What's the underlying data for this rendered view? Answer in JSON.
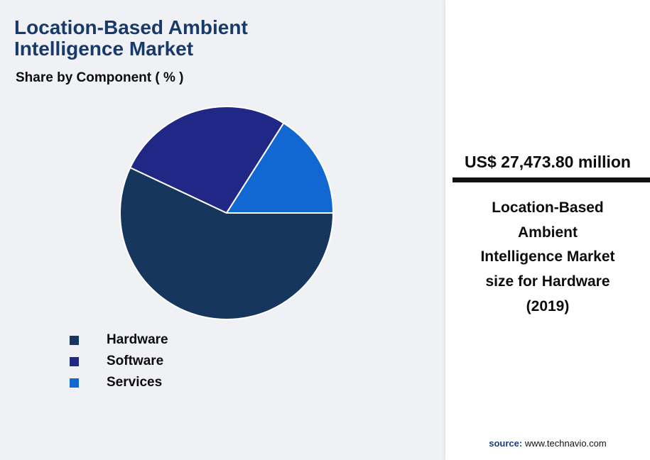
{
  "title": "Location-Based Ambient\nIntelligence Market",
  "subtitle": "Share by Component ( % )",
  "chart_data": {
    "type": "pie",
    "title": "Location-Based Ambient Intelligence Market — Share by Component ( % )",
    "labels": [
      "Hardware",
      "Software",
      "Services"
    ],
    "values": [
      57,
      27,
      16
    ],
    "colors": [
      "#17365d",
      "#202785",
      "#1168d2"
    ],
    "start_angle_deg": 0,
    "direction": "clockwise",
    "legend_position": "bottom-left",
    "data_labels_shown": false
  },
  "panel": {
    "value": "US$ 27,473.80 million",
    "description": "Location-Based\nAmbient\nIntelligence Market\nsize for Hardware\n(2019)",
    "source_label": "source:",
    "source_url": "www.technavio.com"
  },
  "colors": {
    "title_text": "#173a68",
    "background": "#eff1f5",
    "panel_background": "#ffffff",
    "rule": "#111111",
    "source_label": "#1a3c8c"
  }
}
